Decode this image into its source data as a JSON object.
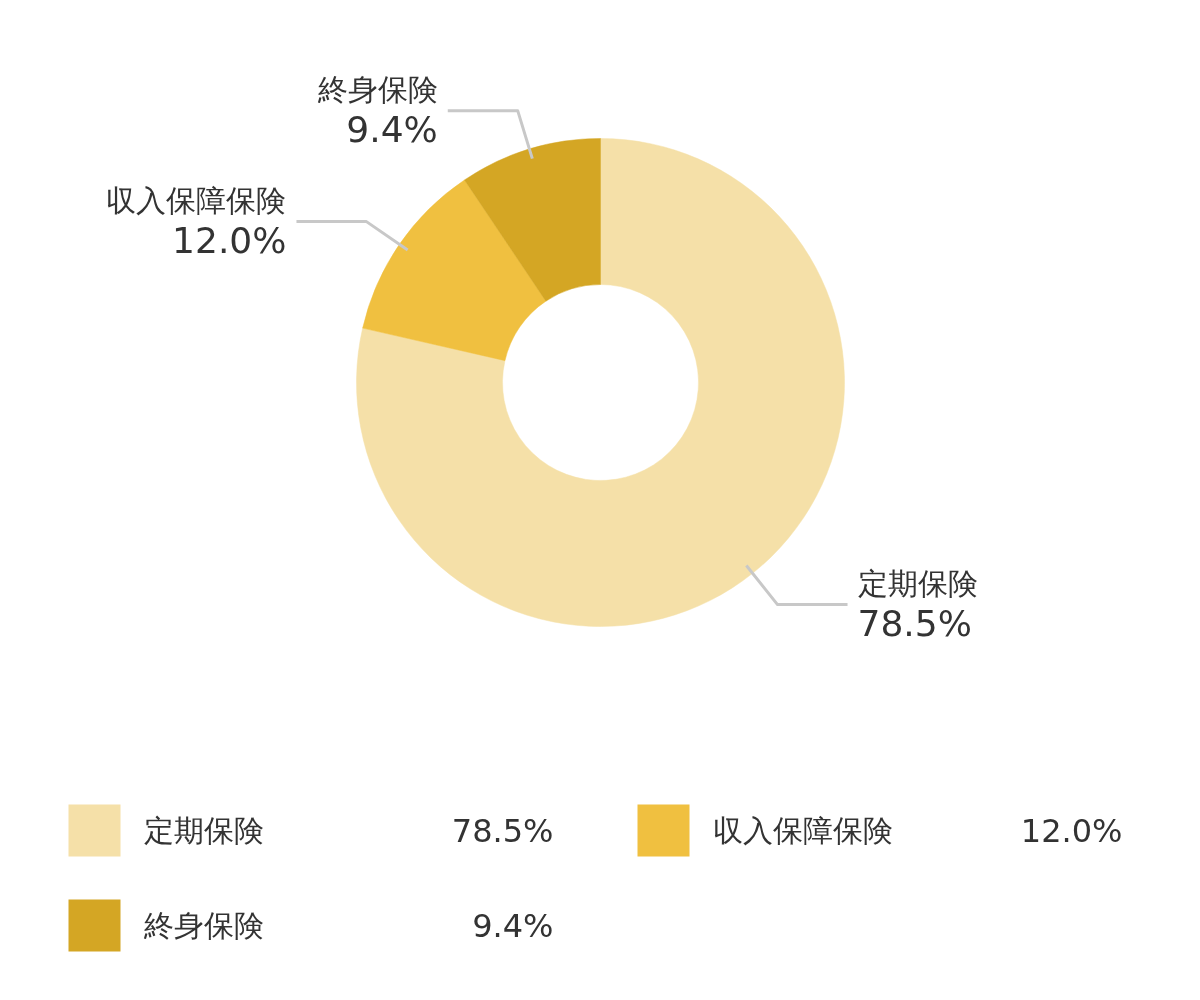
{
  "chart_data": {
    "type": "donut",
    "categories": [
      "定期保険",
      "収入保障保険",
      "終身保険"
    ],
    "values": [
      78.5,
      12.0,
      9.4
    ],
    "value_labels": [
      "78.5%",
      "12.0%",
      "9.4%"
    ],
    "colors": [
      "#f5e0a8",
      "#f0c040",
      "#d4a624"
    ],
    "legend": "bottom"
  }
}
